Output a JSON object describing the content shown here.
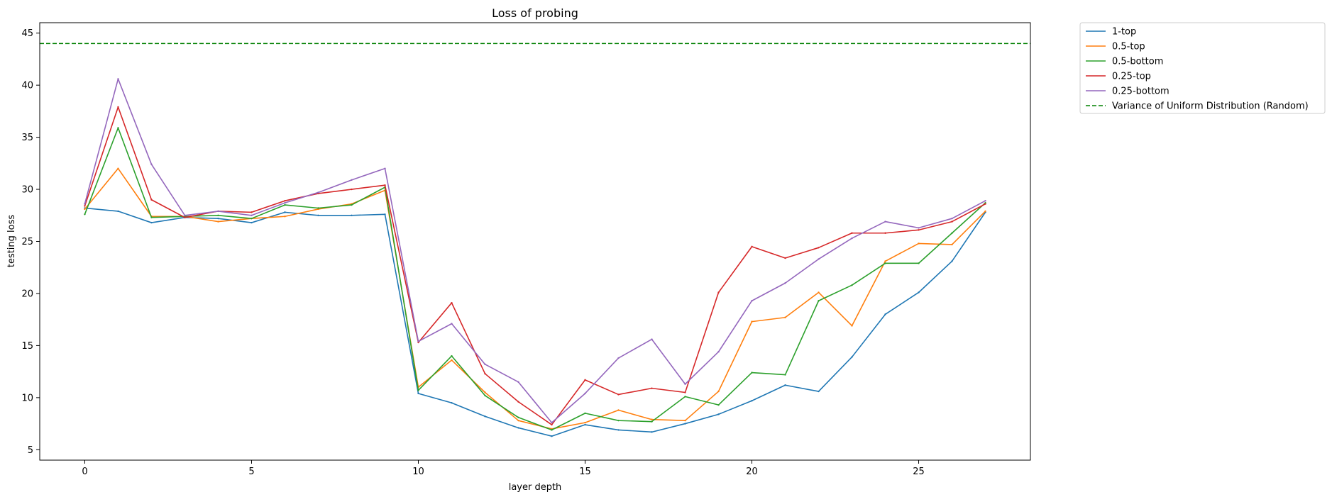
{
  "chart_data": {
    "type": "line",
    "title": "Loss of probing",
    "xlabel": "layer depth",
    "ylabel": "testing loss",
    "xlim": [
      -1.35,
      28.35
    ],
    "ylim": [
      4.0,
      46.0
    ],
    "xticks": [
      0,
      5,
      10,
      15,
      20,
      25
    ],
    "yticks": [
      5,
      10,
      15,
      20,
      25,
      30,
      35,
      40,
      45
    ],
    "grid": false,
    "legend_position": "outside-top-right",
    "x": [
      0,
      1,
      2,
      3,
      4,
      5,
      6,
      7,
      8,
      9,
      10,
      11,
      12,
      13,
      14,
      15,
      16,
      17,
      18,
      19,
      20,
      21,
      22,
      23,
      24,
      25,
      26,
      27
    ],
    "series": [
      {
        "name": "1-top",
        "color": "#1f77b4",
        "style": "solid",
        "values": [
          28.2,
          27.9,
          26.8,
          27.3,
          27.2,
          26.8,
          27.8,
          27.5,
          27.5,
          27.6,
          10.4,
          9.5,
          8.2,
          7.1,
          6.3,
          7.4,
          6.9,
          6.7,
          7.5,
          8.4,
          9.7,
          11.2,
          10.6,
          13.9,
          18.0,
          20.1,
          23.1,
          27.8
        ]
      },
      {
        "name": "0.5-top",
        "color": "#ff7f0e",
        "style": "solid",
        "values": [
          28.1,
          32.0,
          27.4,
          27.4,
          26.9,
          27.2,
          27.4,
          28.1,
          28.6,
          29.9,
          11.0,
          13.6,
          10.5,
          7.8,
          7.0,
          7.6,
          8.8,
          7.9,
          7.8,
          10.6,
          17.3,
          17.7,
          20.1,
          16.9,
          23.1,
          24.8,
          24.7,
          27.9
        ]
      },
      {
        "name": "0.5-bottom",
        "color": "#2ca02c",
        "style": "solid",
        "values": [
          27.6,
          35.9,
          27.3,
          27.4,
          27.5,
          27.2,
          28.5,
          28.2,
          28.5,
          30.2,
          10.7,
          14.0,
          10.2,
          8.1,
          6.9,
          8.5,
          7.8,
          7.7,
          10.1,
          9.3,
          12.4,
          12.2,
          19.3,
          20.8,
          22.9,
          22.9,
          25.8,
          28.7
        ]
      },
      {
        "name": "0.25-top",
        "color": "#d62728",
        "style": "solid",
        "values": [
          28.4,
          37.9,
          29.0,
          27.3,
          27.9,
          27.8,
          28.9,
          29.6,
          30.0,
          30.4,
          15.3,
          19.1,
          12.3,
          9.6,
          7.4,
          11.7,
          10.3,
          10.9,
          10.5,
          20.1,
          24.5,
          23.4,
          24.4,
          25.8,
          25.8,
          26.1,
          26.9,
          28.6
        ]
      },
      {
        "name": "0.25-bottom",
        "color": "#9467bd",
        "style": "solid",
        "values": [
          28.6,
          40.6,
          32.4,
          27.5,
          27.9,
          27.5,
          28.7,
          29.7,
          30.9,
          32.0,
          15.4,
          17.1,
          13.2,
          11.5,
          7.6,
          10.4,
          13.8,
          15.6,
          11.3,
          14.4,
          19.3,
          21.0,
          23.3,
          25.3,
          26.9,
          26.3,
          27.2,
          28.9
        ]
      },
      {
        "name": "Variance of Uniform Distribution (Random)",
        "color": "#008000",
        "style": "dashed",
        "hline": 44.0
      }
    ]
  }
}
